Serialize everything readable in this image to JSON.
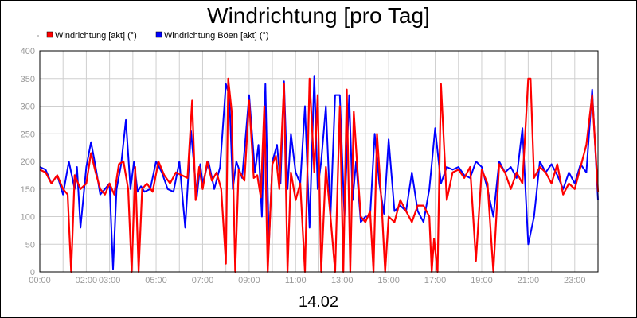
{
  "chart_data": {
    "type": "line",
    "title": "Windrichtung [pro Tag]",
    "date_label": "14.02",
    "x_tick_labels": [
      "00:00",
      "02:00",
      "03:00",
      "05:00",
      "07:00",
      "09:00",
      "11:00",
      "13:00",
      "15:00",
      "17:00",
      "19:00",
      "21:00",
      "23:00"
    ],
    "x_tick_hours": [
      0,
      2,
      3,
      5,
      7,
      9,
      11,
      13,
      15,
      17,
      19,
      21,
      23
    ],
    "xlim": [
      0,
      24
    ],
    "ylim": [
      0,
      400
    ],
    "y_ticks": [
      0,
      50,
      100,
      150,
      200,
      250,
      300,
      350,
      400
    ],
    "grid": true,
    "legend_position": "top-left",
    "series": [
      {
        "name": "Windrichtung Böen [akt] (°)",
        "color": "#0000ff",
        "hours": [
          0,
          0.25,
          0.5,
          0.75,
          1,
          1.25,
          1.5,
          1.6,
          1.75,
          2,
          2.2,
          2.4,
          2.6,
          2.8,
          3,
          3.15,
          3.3,
          3.5,
          3.7,
          3.9,
          4.05,
          4.2,
          4.35,
          4.5,
          4.75,
          5,
          5.25,
          5.5,
          5.75,
          6,
          6.25,
          6.5,
          6.75,
          6.9,
          7,
          7.25,
          7.5,
          7.75,
          8,
          8.15,
          8.3,
          8.45,
          8.7,
          9,
          9.25,
          9.4,
          9.55,
          9.7,
          9.85,
          10,
          10.2,
          10.35,
          10.5,
          10.65,
          10.8,
          11,
          11.2,
          11.4,
          11.6,
          11.8,
          11.95,
          12.1,
          12.3,
          12.5,
          12.7,
          12.9,
          13.1,
          13.3,
          13.45,
          13.6,
          13.8,
          14,
          14.2,
          14.4,
          14.6,
          14.8,
          15,
          15.25,
          15.5,
          15.75,
          16,
          16.25,
          16.5,
          16.75,
          17,
          17.25,
          17.5,
          17.75,
          18,
          18.25,
          18.5,
          18.75,
          19,
          19.25,
          19.5,
          19.75,
          20,
          20.25,
          20.5,
          20.75,
          21,
          21.25,
          21.5,
          21.75,
          22,
          22.25,
          22.5,
          22.75,
          23,
          23.25,
          23.5,
          23.75,
          24
        ],
        "values": [
          190,
          185,
          160,
          175,
          140,
          200,
          150,
          190,
          80,
          190,
          235,
          190,
          140,
          150,
          160,
          5,
          150,
          195,
          275,
          150,
          200,
          145,
          155,
          145,
          150,
          200,
          180,
          150,
          145,
          200,
          80,
          255,
          135,
          195,
          160,
          200,
          150,
          190,
          340,
          320,
          150,
          200,
          170,
          320,
          180,
          230,
          100,
          340,
          50,
          200,
          230,
          160,
          345,
          150,
          250,
          180,
          160,
          300,
          80,
          355,
          150,
          200,
          300,
          100,
          320,
          320,
          100,
          320,
          130,
          200,
          90,
          100,
          100,
          250,
          160,
          105,
          240,
          110,
          120,
          110,
          180,
          110,
          90,
          150,
          260,
          160,
          190,
          185,
          190,
          175,
          170,
          200,
          190,
          150,
          100,
          200,
          180,
          190,
          170,
          260,
          50,
          100,
          200,
          180,
          195,
          175,
          150,
          180,
          160,
          195,
          180,
          330,
          130
        ]
      },
      {
        "name": "Windrichtung [akt] (°)",
        "color": "#ff0000",
        "hours": [
          0,
          0.25,
          0.5,
          0.75,
          1,
          1.2,
          1.35,
          1.5,
          1.75,
          2,
          2.2,
          2.4,
          2.6,
          2.8,
          3,
          3.2,
          3.4,
          3.6,
          3.8,
          3.95,
          4.1,
          4.25,
          4.4,
          4.6,
          4.85,
          5.1,
          5.35,
          5.6,
          5.85,
          6.1,
          6.35,
          6.55,
          6.7,
          6.85,
          7,
          7.2,
          7.4,
          7.6,
          7.8,
          8,
          8.1,
          8.25,
          8.4,
          8.55,
          8.8,
          9,
          9.2,
          9.35,
          9.5,
          9.65,
          9.8,
          10,
          10.15,
          10.3,
          10.5,
          10.65,
          10.8,
          11,
          11.2,
          11.4,
          11.6,
          11.8,
          11.95,
          12.1,
          12.3,
          12.5,
          12.7,
          12.9,
          13.05,
          13.2,
          13.35,
          13.5,
          13.65,
          13.8,
          14,
          14.2,
          14.35,
          14.5,
          14.7,
          14.85,
          15,
          15.25,
          15.5,
          15.75,
          16,
          16.25,
          16.5,
          16.75,
          16.85,
          16.95,
          17.1,
          17.25,
          17.5,
          17.75,
          18,
          18.25,
          18.5,
          18.75,
          19,
          19.25,
          19.5,
          19.75,
          20,
          20.25,
          20.5,
          20.75,
          21,
          21.1,
          21.25,
          21.5,
          21.75,
          22,
          22.25,
          22.5,
          22.75,
          23,
          23.25,
          23.5,
          23.75,
          24
        ],
        "values": [
          185,
          180,
          160,
          175,
          150,
          140,
          0,
          175,
          150,
          160,
          215,
          180,
          150,
          140,
          160,
          140,
          195,
          200,
          150,
          0,
          190,
          0,
          150,
          160,
          145,
          200,
          175,
          160,
          180,
          175,
          170,
          310,
          130,
          190,
          150,
          200,
          165,
          180,
          150,
          15,
          350,
          290,
          0,
          185,
          165,
          310,
          170,
          175,
          135,
          300,
          0,
          195,
          210,
          150,
          340,
          0,
          180,
          130,
          160,
          0,
          350,
          180,
          320,
          0,
          190,
          100,
          0,
          300,
          0,
          330,
          0,
          290,
          190,
          100,
          90,
          110,
          0,
          250,
          120,
          0,
          100,
          90,
          130,
          110,
          90,
          120,
          120,
          100,
          0,
          60,
          0,
          340,
          130,
          180,
          185,
          170,
          190,
          20,
          185,
          160,
          0,
          195,
          180,
          150,
          180,
          160,
          350,
          350,
          170,
          190,
          180,
          160,
          195,
          140,
          160,
          150,
          190,
          230,
          320,
          145
        ]
      }
    ]
  }
}
